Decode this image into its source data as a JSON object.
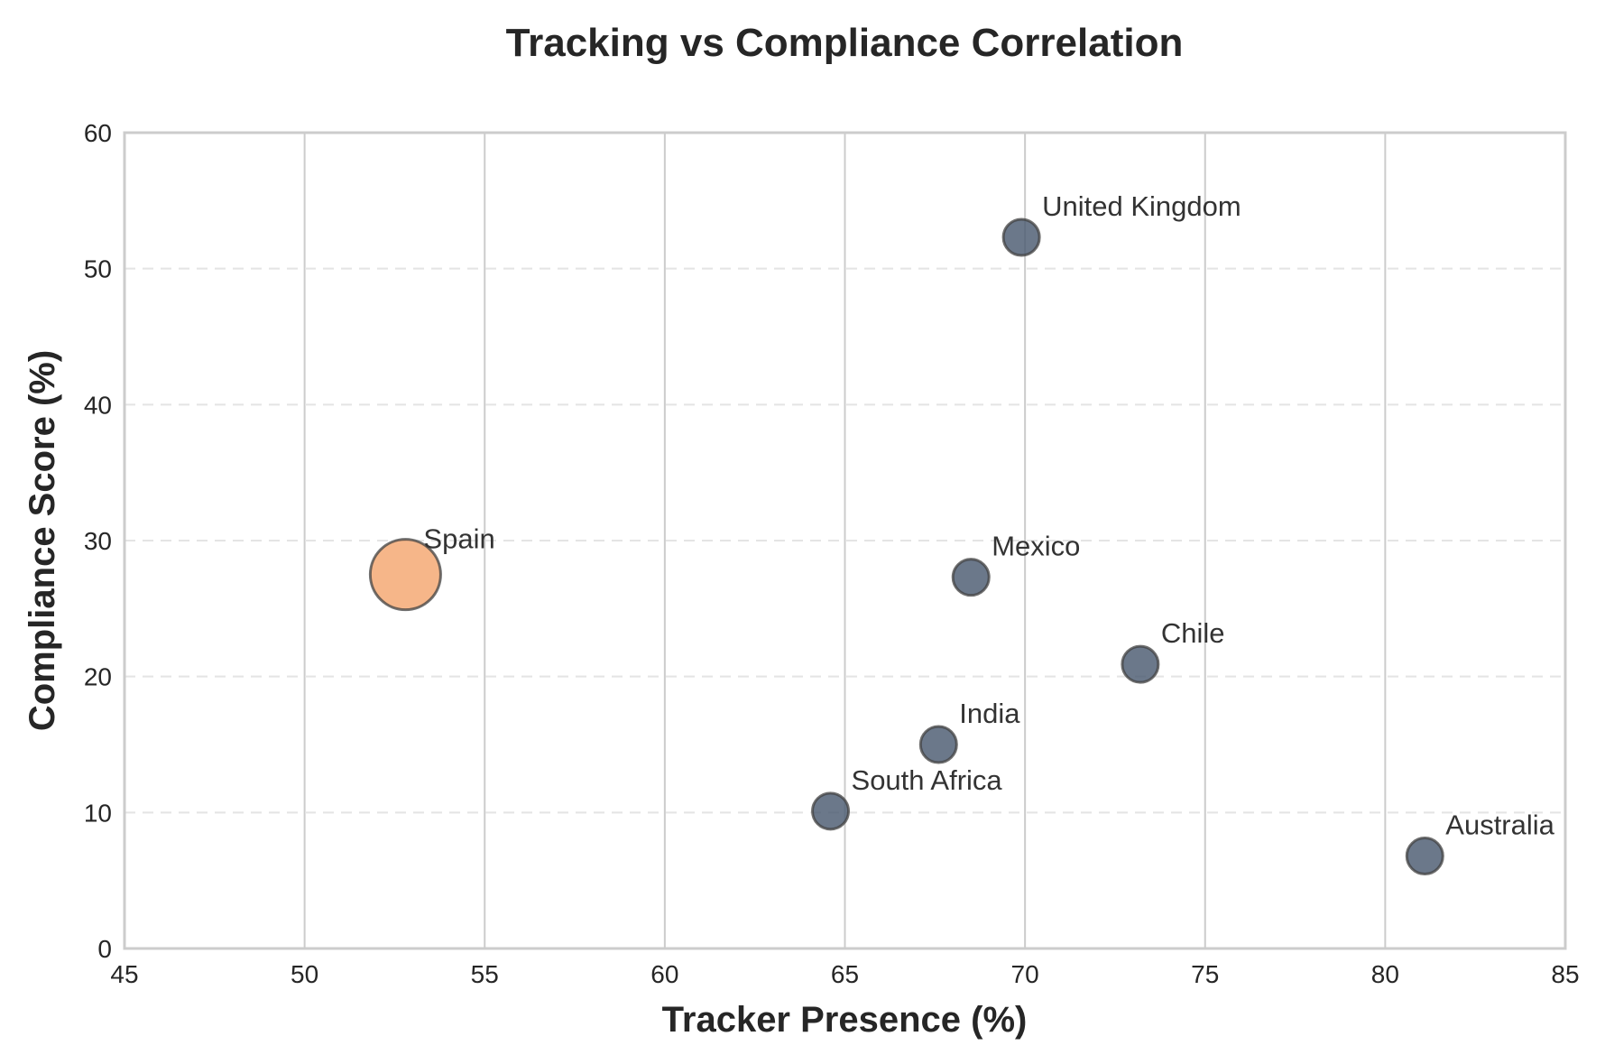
{
  "chart_data": {
    "type": "scatter",
    "title": "Tracking vs Compliance Correlation",
    "xlabel": "Tracker Presence (%)",
    "ylabel": "Compliance Score (%)",
    "xlim": [
      45,
      85
    ],
    "ylim": [
      0,
      60
    ],
    "xticks": [
      45,
      50,
      55,
      60,
      65,
      70,
      75,
      80,
      85
    ],
    "yticks": [
      0,
      10,
      20,
      30,
      40,
      50,
      60
    ],
    "grid": {
      "vertical": "solid",
      "horizontal": "dashed"
    },
    "colors": {
      "default_point": "#4a5a70",
      "highlight_point": "#f4a46c",
      "point_edge": "#404040",
      "grid": "#cccccc",
      "frame": "#cccccc"
    },
    "points": [
      {
        "label": "United Kingdom",
        "x": 69.9,
        "y": 52.3,
        "highlight": false
      },
      {
        "label": "Spain",
        "x": 52.8,
        "y": 27.5,
        "highlight": true
      },
      {
        "label": "Mexico",
        "x": 68.5,
        "y": 27.3,
        "highlight": false
      },
      {
        "label": "Chile",
        "x": 73.2,
        "y": 20.9,
        "highlight": false
      },
      {
        "label": "India",
        "x": 67.6,
        "y": 15.0,
        "highlight": false
      },
      {
        "label": "South Africa",
        "x": 64.6,
        "y": 10.1,
        "highlight": false
      },
      {
        "label": "Australia",
        "x": 81.1,
        "y": 6.8,
        "highlight": false
      }
    ]
  }
}
